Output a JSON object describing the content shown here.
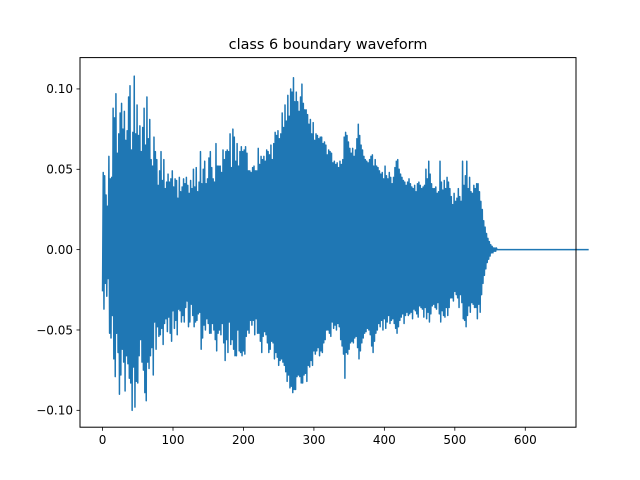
{
  "chart_data": {
    "type": "line",
    "title": "class 6 boundary waveform",
    "xlabel": "",
    "ylabel": "",
    "xlim": [
      -32,
      672
    ],
    "ylim": [
      -0.1105,
      0.1195
    ],
    "x_ticks": [
      0,
      100,
      200,
      300,
      400,
      500,
      600
    ],
    "y_ticks": [
      -0.1,
      -0.05,
      0.0,
      0.05,
      0.1
    ],
    "x_tick_labels": [
      "0",
      "100",
      "200",
      "300",
      "400",
      "500",
      "600"
    ],
    "y_tick_labels": [
      "−0.10",
      "−0.05",
      "0.00",
      "0.05",
      "0.10"
    ],
    "grid": false,
    "legend": "none",
    "series": [
      {
        "color": "#1f77b4",
        "x_start": 0,
        "x_step": 1,
        "values": [
          -0.026,
          0.048,
          -0.037,
          0.046,
          -0.021,
          0.034,
          -0.029,
          0.027,
          -0.018,
          0.058,
          -0.052,
          0.044,
          -0.055,
          0.045,
          -0.041,
          0.088,
          -0.068,
          0.082,
          -0.079,
          0.097,
          -0.052,
          0.06,
          -0.064,
          0.072,
          -0.09,
          0.085,
          -0.078,
          0.091,
          -0.062,
          0.075,
          -0.07,
          0.086,
          -0.088,
          0.068,
          -0.066,
          0.074,
          -0.071,
          0.095,
          -0.08,
          0.102,
          -0.083,
          0.062,
          -0.1,
          0.073,
          -0.073,
          0.108,
          -0.098,
          0.072,
          -0.082,
          0.09,
          -0.083,
          0.071,
          -0.066,
          0.077,
          -0.056,
          0.061,
          -0.07,
          0.076,
          -0.075,
          0.088,
          -0.089,
          0.065,
          -0.094,
          0.095,
          -0.07,
          0.069,
          -0.074,
          0.081,
          -0.066,
          0.056,
          -0.061,
          0.052,
          -0.078,
          0.07,
          -0.045,
          0.061,
          -0.062,
          0.056,
          -0.048,
          0.04,
          -0.054,
          0.049,
          -0.053,
          0.061,
          -0.049,
          0.043,
          -0.059,
          0.056,
          -0.046,
          0.038,
          -0.043,
          0.042,
          -0.051,
          0.047,
          -0.042,
          0.042,
          -0.052,
          0.044,
          -0.057,
          0.049,
          -0.038,
          0.039,
          -0.049,
          0.044,
          -0.044,
          0.043,
          -0.053,
          0.032,
          -0.037,
          0.045,
          -0.038,
          0.036,
          -0.045,
          0.039,
          -0.041,
          0.044,
          -0.045,
          0.041,
          -0.036,
          0.045,
          -0.032,
          0.04,
          -0.048,
          0.035,
          -0.045,
          0.043,
          -0.034,
          0.038,
          -0.041,
          0.05,
          -0.048,
          0.039,
          -0.045,
          0.051,
          -0.044,
          0.036,
          -0.04,
          0.042,
          -0.039,
          0.061,
          -0.062,
          0.041,
          -0.055,
          0.05,
          -0.047,
          0.055,
          -0.05,
          0.041,
          -0.043,
          0.044,
          -0.046,
          0.057,
          -0.052,
          0.061,
          -0.052,
          0.051,
          -0.046,
          0.044,
          -0.05,
          0.042,
          -0.056,
          0.066,
          -0.063,
          0.052,
          -0.052,
          0.052,
          -0.05,
          0.052,
          -0.053,
          0.048,
          -0.046,
          0.062,
          -0.058,
          0.056,
          -0.069,
          0.061,
          -0.056,
          0.062,
          -0.064,
          0.061,
          -0.045,
          0.072,
          -0.059,
          0.051,
          -0.056,
          0.075,
          -0.062,
          0.07,
          -0.066,
          0.055,
          -0.066,
          0.066,
          -0.05,
          0.052,
          -0.063,
          0.061,
          -0.064,
          0.064,
          -0.066,
          0.061,
          -0.063,
          0.062,
          -0.065,
          0.064,
          -0.054,
          0.06,
          -0.05,
          0.049,
          -0.052,
          0.049,
          -0.044,
          0.048,
          -0.047,
          0.051,
          -0.044,
          0.052,
          -0.053,
          0.049,
          -0.043,
          0.049,
          -0.052,
          0.063,
          -0.052,
          0.053,
          -0.057,
          0.058,
          -0.064,
          0.056,
          -0.054,
          0.058,
          -0.051,
          0.055,
          -0.053,
          0.062,
          -0.058,
          0.061,
          -0.064,
          0.059,
          -0.062,
          0.065,
          -0.057,
          0.056,
          -0.058,
          0.066,
          -0.068,
          0.073,
          -0.064,
          0.071,
          -0.067,
          0.074,
          -0.072,
          0.069,
          -0.069,
          0.072,
          -0.068,
          0.085,
          -0.07,
          0.076,
          -0.072,
          0.09,
          -0.076,
          0.08,
          -0.082,
          0.096,
          -0.078,
          0.083,
          -0.086,
          0.1,
          -0.085,
          0.098,
          -0.089,
          0.107,
          -0.087,
          0.092,
          -0.087,
          0.098,
          -0.079,
          0.092,
          -0.078,
          0.086,
          -0.079,
          0.095,
          -0.083,
          0.103,
          -0.083,
          0.091,
          -0.078,
          0.087,
          -0.077,
          0.087,
          -0.082,
          0.084,
          -0.072,
          0.078,
          -0.073,
          0.081,
          -0.069,
          0.072,
          -0.072,
          0.079,
          -0.063,
          0.068,
          -0.065,
          0.072,
          -0.063,
          0.071,
          -0.061,
          0.069,
          -0.066,
          0.07,
          -0.063,
          0.07,
          -0.064,
          0.066,
          -0.058,
          0.067,
          -0.056,
          0.065,
          -0.05,
          0.059,
          -0.05,
          0.062,
          -0.052,
          0.061,
          -0.054,
          0.06,
          -0.045,
          0.054,
          -0.049,
          0.055,
          -0.047,
          0.053,
          -0.05,
          0.054,
          -0.046,
          0.051,
          -0.048,
          0.055,
          -0.056,
          0.053,
          -0.06,
          0.056,
          -0.065,
          0.07,
          -0.08,
          0.073,
          -0.064,
          0.071,
          -0.065,
          0.067,
          -0.062,
          0.063,
          -0.058,
          0.06,
          -0.057,
          0.063,
          -0.058,
          0.058,
          -0.055,
          0.062,
          -0.054,
          0.069,
          -0.061,
          0.078,
          -0.068,
          0.071,
          -0.063,
          0.065,
          -0.058,
          0.062,
          -0.055,
          0.058,
          -0.052,
          0.056,
          -0.051,
          0.055,
          -0.049,
          0.054,
          -0.05,
          0.056,
          -0.053,
          0.058,
          -0.06,
          0.059,
          -0.064,
          0.052,
          -0.057,
          0.056,
          -0.052,
          0.052,
          -0.05,
          0.051,
          -0.046,
          0.049,
          -0.048,
          0.047,
          -0.044,
          0.048,
          -0.05,
          0.044,
          -0.043,
          0.052,
          -0.049,
          0.046,
          -0.045,
          0.044,
          -0.041,
          0.048,
          -0.046,
          0.045,
          -0.044,
          0.041,
          -0.043,
          0.045,
          -0.046,
          0.051,
          -0.049,
          0.055,
          -0.052,
          0.056,
          -0.048,
          0.05,
          -0.044,
          0.047,
          -0.042,
          0.045,
          -0.04,
          0.043,
          -0.046,
          0.042,
          -0.041,
          0.04,
          -0.039,
          0.042,
          -0.041,
          0.044,
          -0.04,
          0.041,
          -0.039,
          0.039,
          -0.043,
          0.038,
          -0.037,
          0.04,
          -0.038,
          0.036,
          -0.04,
          0.041,
          -0.042,
          0.042,
          -0.035,
          0.04,
          -0.036,
          0.038,
          -0.037,
          0.039,
          -0.042,
          0.04,
          -0.036,
          0.05,
          -0.043,
          0.044,
          -0.039,
          0.055,
          -0.045,
          0.047,
          -0.04,
          0.041,
          -0.035,
          0.038,
          -0.034,
          0.038,
          -0.036,
          0.039,
          -0.037,
          0.035,
          -0.033,
          0.036,
          -0.04,
          0.055,
          -0.045,
          0.042,
          -0.038,
          0.037,
          -0.041,
          0.043,
          -0.042,
          0.038,
          -0.036,
          0.045,
          -0.041,
          0.042,
          -0.036,
          0.038,
          -0.03,
          0.033,
          -0.03,
          0.028,
          -0.032,
          0.035,
          -0.026,
          0.03,
          -0.028,
          0.032,
          -0.03,
          0.038,
          -0.036,
          0.033,
          -0.028,
          0.03,
          -0.033,
          0.055,
          -0.043,
          0.04,
          -0.044,
          0.046,
          -0.048,
          0.055,
          -0.041,
          0.038,
          -0.035,
          0.045,
          -0.039,
          0.036,
          -0.033,
          0.035,
          -0.034,
          0.04,
          -0.036,
          0.038,
          -0.036,
          0.041,
          -0.043,
          0.041,
          -0.034,
          0.036,
          -0.039,
          0.03,
          -0.028,
          0.025,
          -0.021,
          0.018,
          -0.016,
          0.014,
          -0.012,
          0.01,
          -0.008,
          0.007,
          -0.006,
          0.005,
          -0.004,
          0.003,
          -0.002,
          0.002,
          -0.002,
          0.001,
          -0.001,
          0.001,
          -0.001,
          0.001,
          0.0,
          0.0,
          0.0,
          0.0,
          0.0,
          0.0,
          0.0,
          0.0,
          0.0,
          0.0,
          0.0,
          0.0,
          0.0,
          0.0,
          0.0,
          0.0,
          0.0,
          0.0,
          0.0,
          0.0,
          0.0,
          0.0,
          0.0,
          0.0,
          0.0,
          0.0,
          0.0,
          0.0,
          0.0,
          0.0,
          0.0,
          0.0,
          0.0,
          0.0,
          0.0,
          0.0,
          0.0,
          0.0,
          0.0,
          0.0,
          0.0,
          0.0,
          0.0,
          0.0,
          0.0,
          0.0,
          0.0,
          0.0,
          0.0,
          0.0,
          0.0,
          0.0,
          0.0,
          0.0,
          0.0,
          0.0,
          0.0,
          0.0,
          0.0,
          0.0,
          0.0,
          0.0,
          0.0,
          0.0,
          0.0,
          0.0,
          0.0,
          0.0,
          0.0,
          0.0,
          0.0,
          0.0,
          0.0,
          0.0,
          0.0,
          0.0,
          0.0,
          0.0,
          0.0,
          0.0,
          0.0,
          0.0,
          0.0,
          0.0,
          0.0,
          0.0,
          0.0,
          0.0,
          0.0,
          0.0,
          0.0,
          0.0,
          0.0,
          0.0,
          0.0,
          0.0,
          0.0,
          0.0,
          0.0,
          0.0,
          0.0,
          0.0,
          0.0,
          0.0,
          0.0,
          0.0,
          0.0,
          0.0,
          0.0,
          0.0,
          0.0,
          0.0,
          0.0,
          0.0,
          0.0,
          0.0,
          0.0,
          0.0,
          0.0,
          0.0,
          0.0,
          0.0,
          0.0,
          0.0,
          0.0,
          0.0,
          0.0,
          0.0,
          0.0,
          0.0,
          0.0
        ]
      }
    ]
  }
}
